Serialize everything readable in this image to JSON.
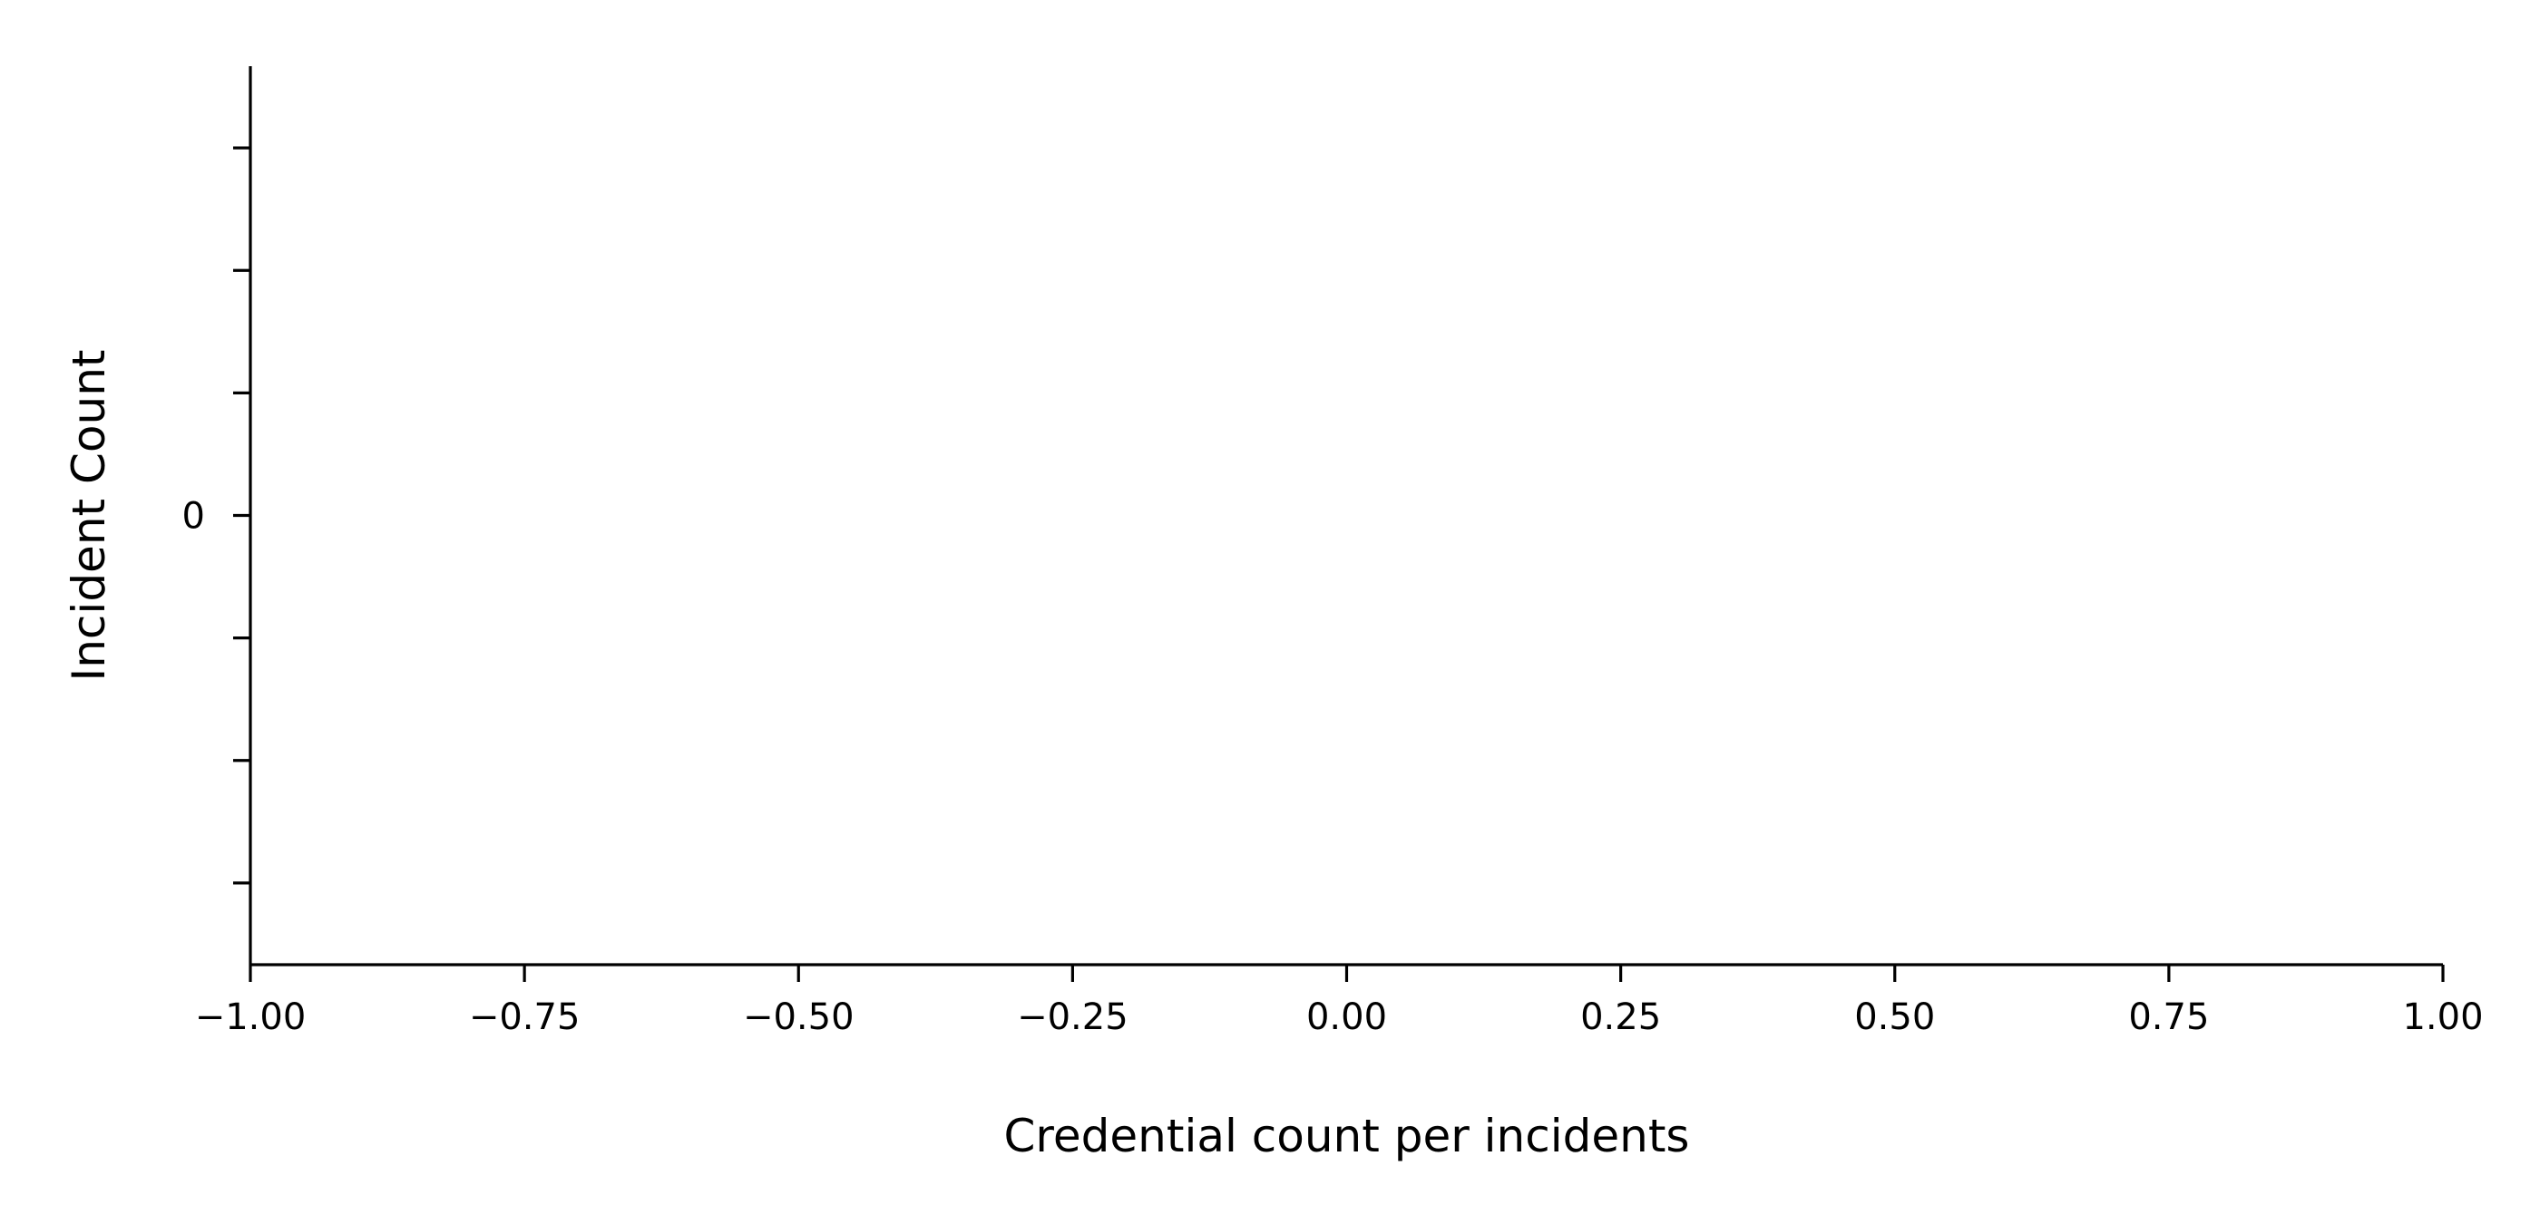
{
  "chart_data": {
    "type": "bar",
    "title": "",
    "xlabel": "Credential count per incidents",
    "ylabel": "Incident Count",
    "xlim": [
      -1.0,
      1.0
    ],
    "ylim": [
      -0.055,
      0.055
    ],
    "x_ticks": [
      -1.0,
      -0.75,
      -0.5,
      -0.25,
      0.0,
      0.25,
      0.5,
      0.75,
      1.0
    ],
    "x_tick_labels": [
      "−1.00",
      "−0.75",
      "−0.50",
      "−0.25",
      "0.00",
      "0.25",
      "0.50",
      "0.75",
      "1.00"
    ],
    "y_ticks": [
      -0.045,
      -0.03,
      -0.015,
      0.0,
      0.015,
      0.03,
      0.045
    ],
    "y_tick_labels": [
      "",
      "",
      "",
      "0",
      "",
      "",
      ""
    ],
    "grid": false,
    "series": [],
    "colors": {
      "axis": "#000000",
      "background": "#ffffff"
    }
  }
}
